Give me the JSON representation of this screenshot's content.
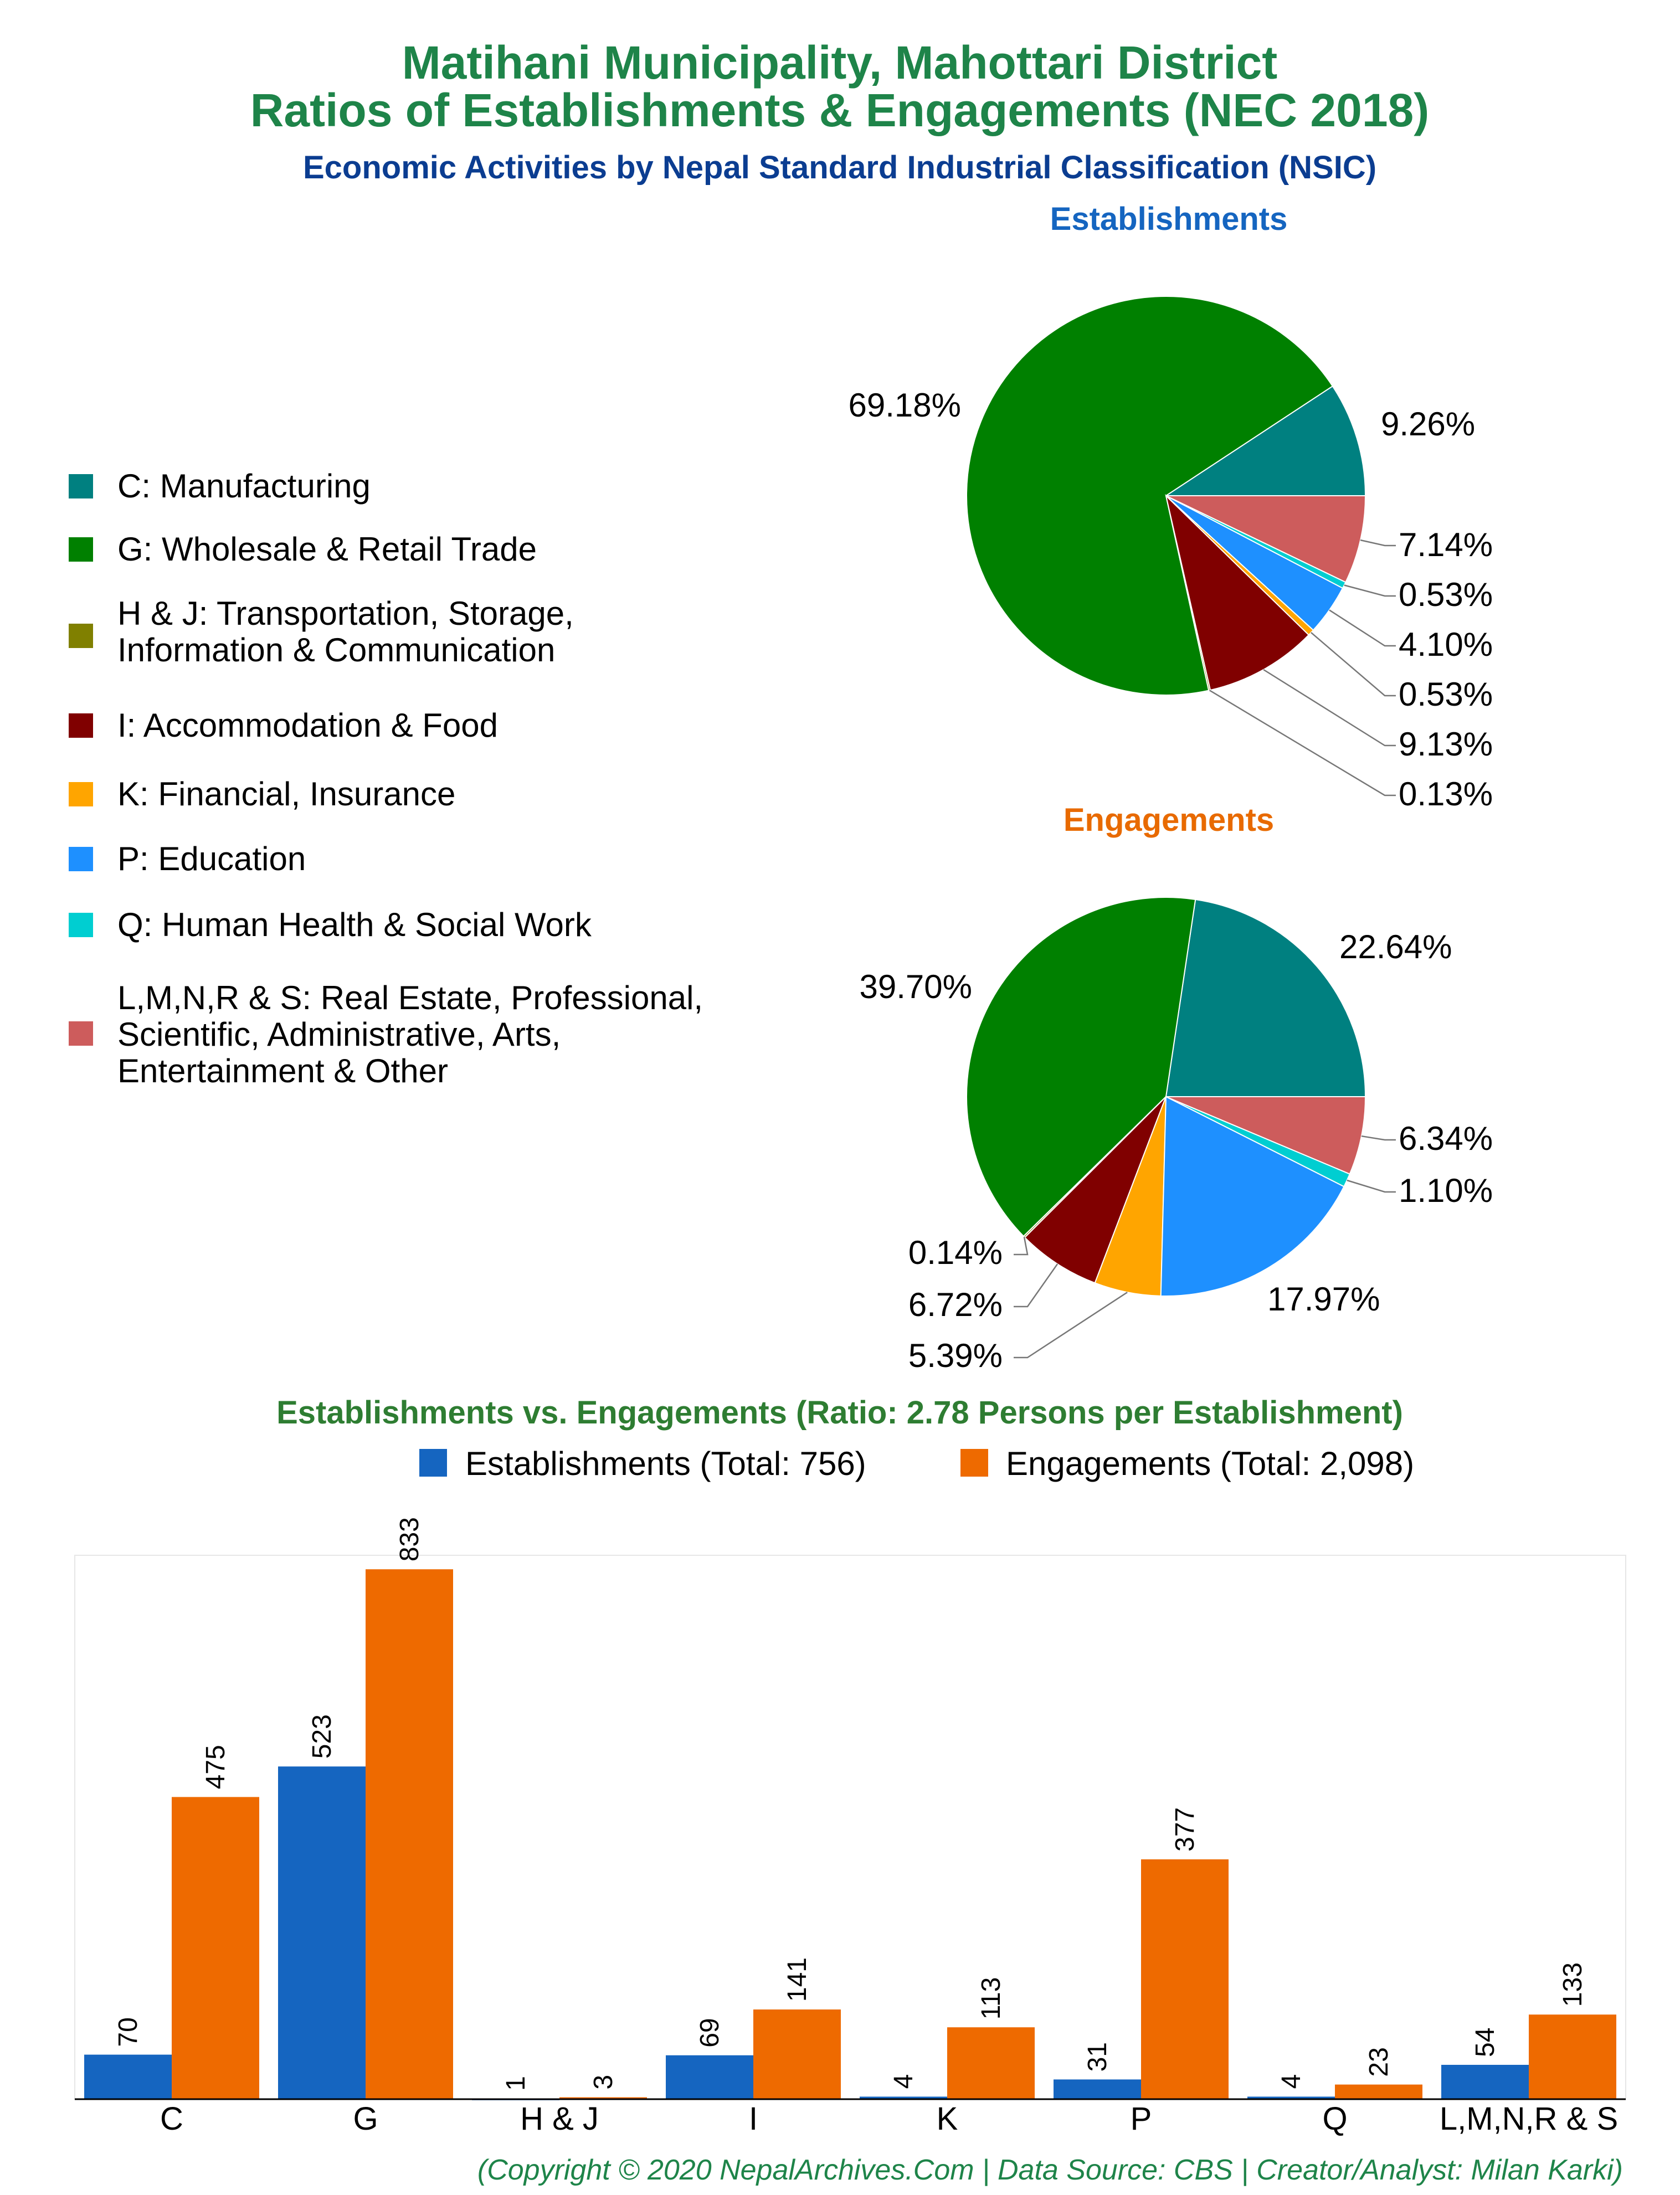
{
  "header": {
    "title_line1": "Matihani Municipality, Mahottari District",
    "title_line2": "Ratios of Establishments & Engagements (NEC 2018)",
    "subtitle": "Economic Activities by Nepal Standard Industrial Classification (NSIC)"
  },
  "colors": {
    "title": "#1e8449",
    "subtitle": "#0b3d91",
    "establishments_title": "#1565c0",
    "engagements_title": "#e86a00",
    "establishments_bar": "#1565c0",
    "engagements_bar": "#ee6a00"
  },
  "legend": {
    "items": [
      {
        "label": [
          "C: Manufacturing"
        ],
        "color": "#008080"
      },
      {
        "label": [
          "G: Wholesale & Retail Trade"
        ],
        "color": "#008000"
      },
      {
        "label": [
          "H & J: Transportation, Storage,",
          "Information & Communication"
        ],
        "color": "#808000"
      },
      {
        "label": [
          "I: Accommodation & Food"
        ],
        "color": "#800000"
      },
      {
        "label": [
          "K: Financial, Insurance"
        ],
        "color": "#ffa500"
      },
      {
        "label": [
          "P: Education"
        ],
        "color": "#1e90ff"
      },
      {
        "label": [
          "Q: Human Health & Social Work"
        ],
        "color": "#00ced1"
      },
      {
        "label": [
          "L,M,N,R & S: Real Estate, Professional,",
          "Scientific, Administrative, Arts,",
          "Entertainment & Other"
        ],
        "color": "#cd5c5c"
      }
    ]
  },
  "chart_data": [
    {
      "type": "pie",
      "title": "Establishments",
      "categories": [
        "C",
        "G",
        "H & J",
        "I",
        "K",
        "P",
        "Q",
        "L,M,N,R & S"
      ],
      "values": [
        9.26,
        69.18,
        0.13,
        9.13,
        0.53,
        4.1,
        0.53,
        7.14
      ],
      "labels": [
        "9.26%",
        "69.18%",
        "0.13%",
        "9.13%",
        "0.53%",
        "4.10%",
        "0.53%",
        "7.14%"
      ]
    },
    {
      "type": "pie",
      "title": "Engagements",
      "categories": [
        "C",
        "G",
        "H & J",
        "I",
        "K",
        "P",
        "Q",
        "L,M,N,R & S"
      ],
      "values": [
        22.64,
        39.7,
        0.14,
        6.72,
        5.39,
        17.97,
        1.1,
        6.34
      ],
      "labels": [
        "22.64%",
        "39.70%",
        "0.14%",
        "6.72%",
        "5.39%",
        "17.97%",
        "1.10%",
        "6.34%"
      ]
    },
    {
      "type": "bar",
      "title": "Establishments vs. Engagements (Ratio: 2.78 Persons per Establishment)",
      "categories": [
        "C",
        "G",
        "H & J",
        "I",
        "K",
        "P",
        "Q",
        "L,M,N,R & S"
      ],
      "series": [
        {
          "name": "Establishments (Total: 756)",
          "values": [
            70,
            523,
            1,
            69,
            4,
            31,
            4,
            54
          ]
        },
        {
          "name": "Engagements (Total: 2,098)",
          "values": [
            475,
            833,
            3,
            141,
            113,
            377,
            23,
            133
          ]
        }
      ],
      "ylim": [
        0,
        855
      ],
      "grid": false
    }
  ],
  "footer": {
    "credit": "(Copyright © 2020 NepalArchives.Com | Data Source: CBS | Creator/Analyst: Milan Karki)"
  }
}
